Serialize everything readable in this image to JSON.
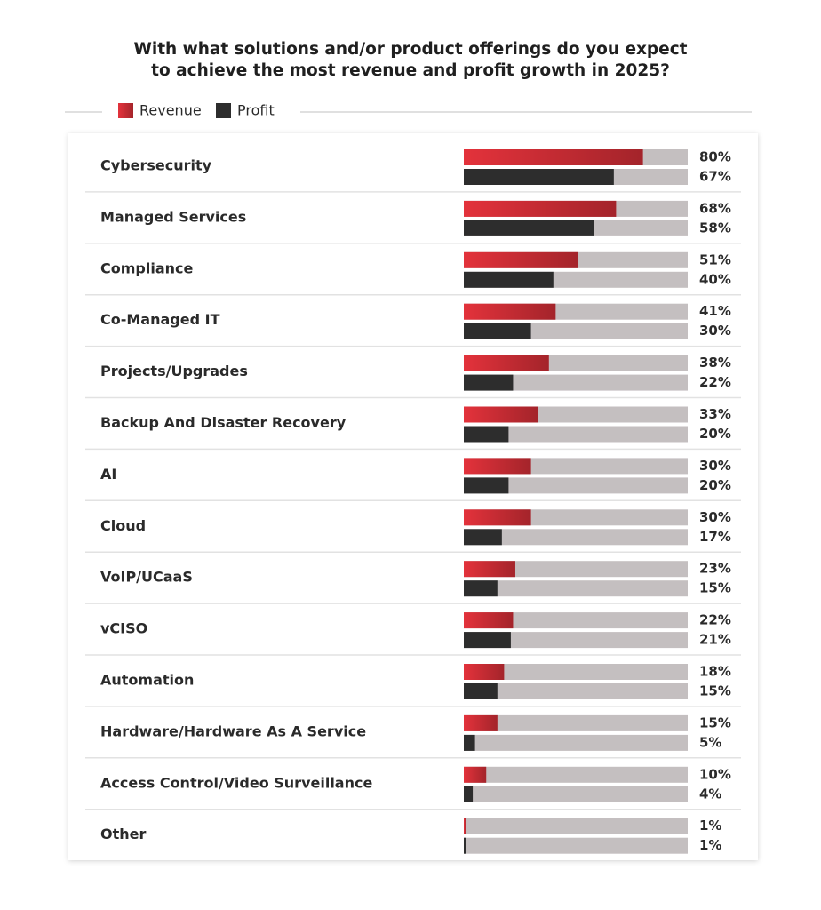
{
  "chart_data": {
    "type": "bar",
    "orientation": "horizontal",
    "title": "With what solutions and/or product offerings do you expect to achieve the most revenue and profit growth in 2025?",
    "categories": [
      "Cybersecurity",
      "Managed Services",
      "Compliance",
      "Co-Managed IT",
      "Projects/Upgrades",
      "Backup And Disaster Recovery",
      "AI",
      "Cloud",
      "VoIP/UCaaS",
      "vCISO",
      "Automation",
      "Hardware/Hardware As A Service",
      "Access Control/Video Surveillance",
      "Other"
    ],
    "series": [
      {
        "name": "Revenue",
        "color": "#e3323b",
        "values": [
          80,
          68,
          51,
          41,
          38,
          33,
          30,
          30,
          23,
          22,
          18,
          15,
          10,
          1
        ],
        "value_labels": [
          "80%",
          "68%",
          "51%",
          "41%",
          "38%",
          "33%",
          "30%",
          "30%",
          "23%",
          "22%",
          "18%",
          "15%",
          "10%",
          "1%"
        ]
      },
      {
        "name": "Profit",
        "color": "#2d2d2d",
        "values": [
          67,
          58,
          40,
          30,
          22,
          20,
          20,
          17,
          15,
          21,
          15,
          5,
          4,
          1
        ],
        "value_labels": [
          "67%",
          "58%",
          "40%",
          "30%",
          "22%",
          "20%",
          "20%",
          "17%",
          "15%",
          "21%",
          "15%",
          "5%",
          "4%",
          "1%"
        ]
      }
    ],
    "xlim": [
      0,
      100
    ]
  }
}
